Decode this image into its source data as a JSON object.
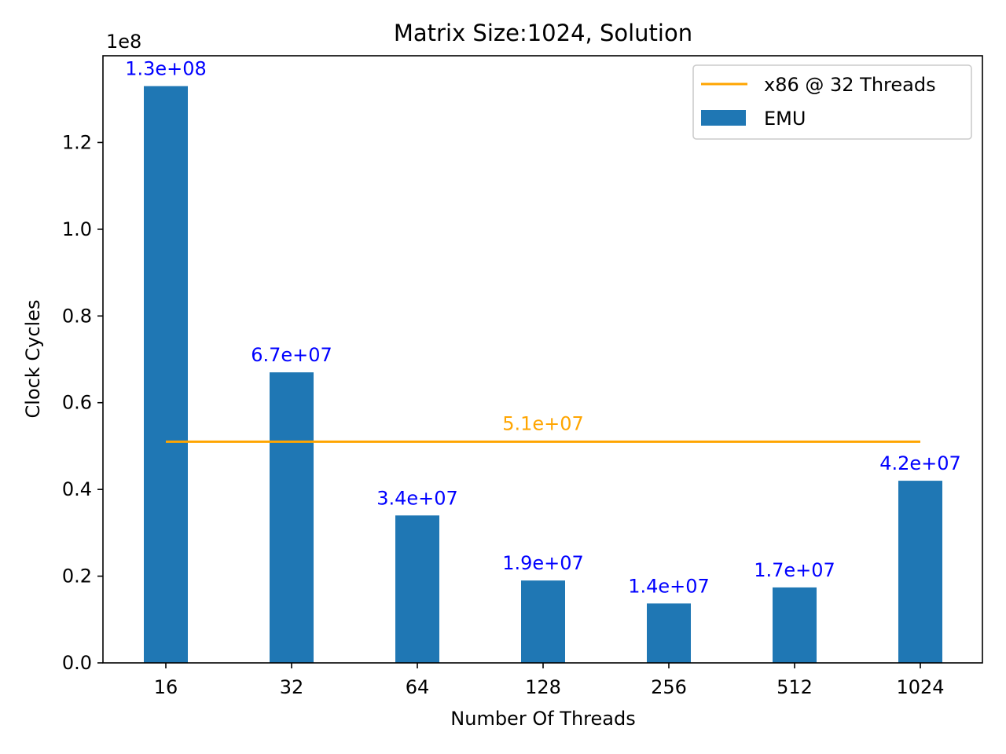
{
  "colors": {
    "bar": "#1f77b4",
    "bar_label": "#0000ff",
    "reference": "#ffa500"
  },
  "chart_data": {
    "type": "bar",
    "title": "Matrix Size:1024, Solution",
    "xlabel": "Number Of Threads",
    "ylabel": "Clock Cycles",
    "y_offset_label": "1e8",
    "categories": [
      "16",
      "32",
      "64",
      "128",
      "256",
      "512",
      "1024"
    ],
    "series": [
      {
        "name": "EMU",
        "values": [
          133000000,
          67000000,
          34000000,
          19000000,
          13700000,
          17400000,
          42000000
        ],
        "labels": [
          "1.3e+08",
          "6.7e+07",
          "3.4e+07",
          "1.9e+07",
          "1.4e+07",
          "1.7e+07",
          "4.2e+07"
        ]
      }
    ],
    "reference_line": {
      "name": "x86 @ 32 Threads",
      "value": 51000000,
      "label": "5.1e+07"
    },
    "ylim": [
      0,
      140000000
    ],
    "yticks": [
      0,
      20000000,
      40000000,
      60000000,
      80000000,
      100000000,
      120000000
    ],
    "ytick_labels": [
      "0.0",
      "0.2",
      "0.4",
      "0.6",
      "0.8",
      "1.0",
      "1.2"
    ],
    "grid": false,
    "legend_position": "top-right"
  }
}
